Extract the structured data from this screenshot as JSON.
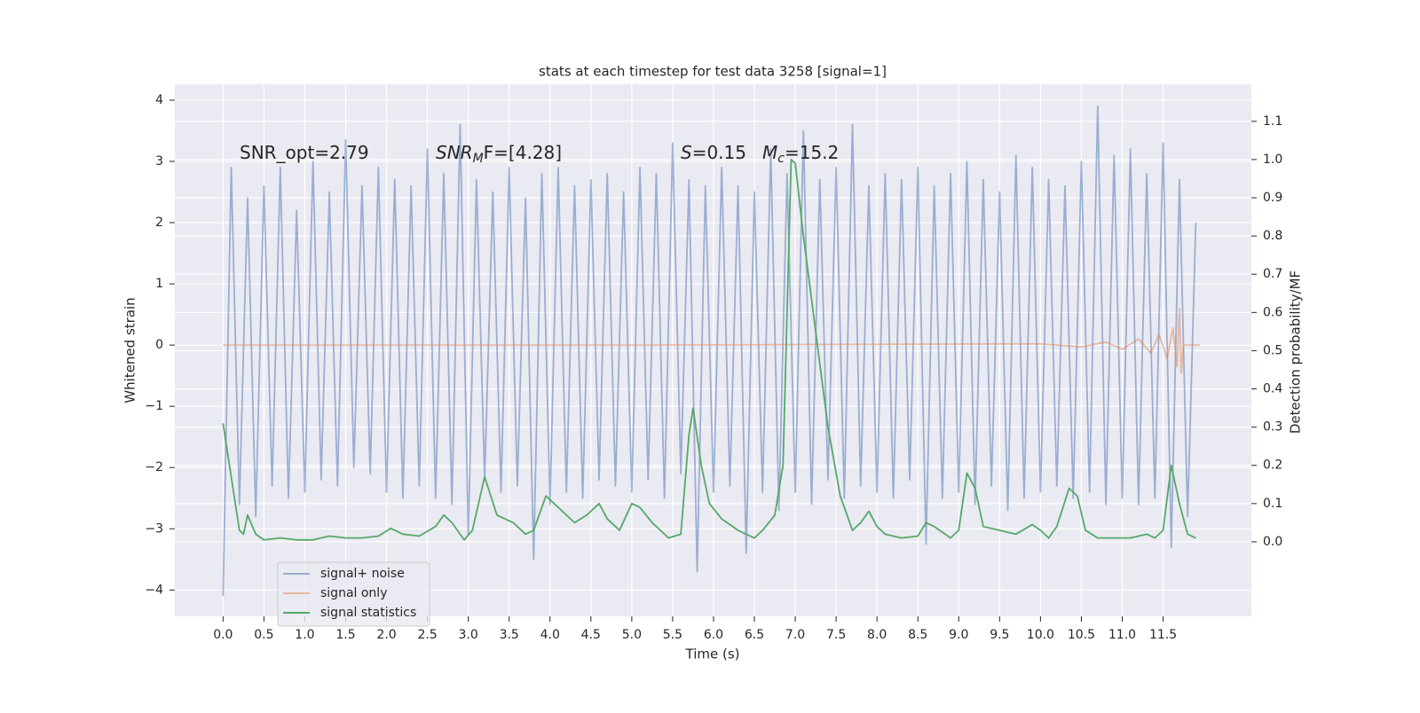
{
  "chart_data": {
    "type": "line",
    "title": "stats at each timestep for test data 3258 [signal=1]",
    "xlabel": "Time (s)",
    "ylabel": "Whitened strain",
    "y2label": "Detection probability/MF",
    "grid": true,
    "legend": "lower left",
    "annotations": [
      [
        "SNR_opt=2.79"
      ],
      [
        "SNR",
        "M",
        "F=[4.28]"
      ],
      [
        "S",
        "=0.15"
      ],
      [
        "M",
        "c",
        "=15.2"
      ]
    ],
    "xlim": [
      -0.59,
      12.58
    ],
    "ylim": [
      -4.43,
      4.26
    ],
    "y2lim": [
      -0.195,
      1.197
    ],
    "xticks": [
      {
        "value": 0,
        "label": "0.0"
      },
      {
        "value": 0.5,
        "label": "0.5"
      },
      {
        "value": 1,
        "label": "1.0"
      },
      {
        "value": 1.5,
        "label": "1.5"
      },
      {
        "value": 2,
        "label": "2.0"
      },
      {
        "value": 2.5,
        "label": "2.5"
      },
      {
        "value": 3,
        "label": "3.0"
      },
      {
        "value": 3.5,
        "label": "3.5"
      },
      {
        "value": 4,
        "label": "4.0"
      },
      {
        "value": 4.5,
        "label": "4.5"
      },
      {
        "value": 5,
        "label": "5.0"
      },
      {
        "value": 5.5,
        "label": "5.5"
      },
      {
        "value": 6,
        "label": "6.0"
      },
      {
        "value": 6.5,
        "label": "6.5"
      },
      {
        "value": 7,
        "label": "7.0"
      },
      {
        "value": 7.5,
        "label": "7.5"
      },
      {
        "value": 8,
        "label": "8.0"
      },
      {
        "value": 8.5,
        "label": "8.5"
      },
      {
        "value": 9,
        "label": "9.0"
      },
      {
        "value": 9.5,
        "label": "9.5"
      },
      {
        "value": 10,
        "label": "10.0"
      },
      {
        "value": 10.5,
        "label": "10.5"
      },
      {
        "value": 11,
        "label": "11.0"
      },
      {
        "value": 11.5,
        "label": "11.5"
      }
    ],
    "yticks": [
      {
        "value": -4,
        "label": "−4"
      },
      {
        "value": -3,
        "label": "−3"
      },
      {
        "value": -2,
        "label": "−2"
      },
      {
        "value": -1,
        "label": "−1"
      },
      0,
      1,
      2,
      3,
      4
    ],
    "y2ticks": [
      {
        "value": 0,
        "label": "0.0"
      },
      0.1,
      0.2,
      0.3,
      0.4,
      0.5,
      0.6,
      0.7,
      0.8,
      0.9,
      {
        "value": 1,
        "label": "1.0"
      },
      1.1
    ],
    "series": [
      {
        "name": "signal+ noise",
        "color": "#4c72b0",
        "opacity": 0.5,
        "x": [
          0,
          0.1,
          0.2,
          0.3,
          0.4,
          0.5,
          0.6,
          0.7,
          0.8,
          0.9,
          1,
          1.1,
          1.2,
          1.3,
          1.4,
          1.5,
          1.6,
          1.7,
          1.8,
          1.9,
          2,
          2.1,
          2.2,
          2.3,
          2.4,
          2.5,
          2.6,
          2.7,
          2.8,
          2.9,
          3,
          3.1,
          3.2,
          3.3,
          3.4,
          3.5,
          3.6,
          3.7,
          3.8,
          3.9,
          4,
          4.1,
          4.2,
          4.3,
          4.4,
          4.5,
          4.6,
          4.7,
          4.8,
          4.9,
          5,
          5.1,
          5.2,
          5.3,
          5.4,
          5.5,
          5.6,
          5.7,
          5.8,
          5.9,
          6,
          6.1,
          6.2,
          6.3,
          6.4,
          6.5,
          6.6,
          6.7,
          6.8,
          6.9,
          7,
          7.1,
          7.2,
          7.3,
          7.4,
          7.5,
          7.6,
          7.7,
          7.8,
          7.9,
          8,
          8.1,
          8.2,
          8.3,
          8.4,
          8.5,
          8.6,
          8.7,
          8.8,
          8.9,
          9,
          9.1,
          9.2,
          9.3,
          9.4,
          9.5,
          9.6,
          9.7,
          9.8,
          9.9,
          10,
          10.1,
          10.2,
          10.3,
          10.4,
          10.5,
          10.6,
          10.7,
          10.8,
          10.9,
          11,
          11.1,
          11.2,
          11.3,
          11.4,
          11.5,
          11.6,
          11.7,
          11.8,
          11.9
        ],
        "values": [
          -4.1,
          2.9,
          -2.6,
          2.4,
          -2.8,
          2.6,
          -2.3,
          2.9,
          -2.5,
          2.2,
          -2.4,
          3.0,
          -2.2,
          2.5,
          -2.3,
          3.35,
          -2.0,
          2.6,
          -2.1,
          2.9,
          -2.4,
          2.7,
          -2.5,
          2.6,
          -2.3,
          3.2,
          -2.5,
          2.8,
          -2.6,
          3.6,
          -3.1,
          2.7,
          -2.2,
          2.5,
          -2.4,
          2.9,
          -2.3,
          2.4,
          -3.5,
          2.8,
          -2.6,
          2.9,
          -2.4,
          2.6,
          -2.5,
          2.7,
          -2.2,
          2.8,
          -2.3,
          2.5,
          -2.4,
          2.9,
          -2.2,
          2.8,
          -2.5,
          3.3,
          -2.1,
          2.7,
          -3.7,
          2.6,
          -2.4,
          2.9,
          -2.3,
          2.6,
          -3.4,
          2.5,
          -2.4,
          3.2,
          -2.7,
          2.8,
          -2.4,
          3.5,
          -2.6,
          2.7,
          -2.2,
          2.9,
          -2.5,
          3.6,
          -2.3,
          2.6,
          -2.4,
          2.8,
          -2.5,
          2.7,
          -2.2,
          2.9,
          -3.25,
          2.6,
          -2.5,
          2.8,
          -2.4,
          3.0,
          -2.6,
          2.7,
          -2.3,
          2.5,
          -2.7,
          3.1,
          -2.5,
          2.9,
          -2.4,
          2.7,
          -2.3,
          2.6,
          -2.5,
          3.0,
          -2.4,
          3.9,
          -2.6,
          3.1,
          -2.5,
          3.2,
          -2.6,
          2.8,
          -2.5,
          3.3,
          -3.3,
          2.7,
          -2.8,
          2.0
        ]
      },
      {
        "name": "signal only",
        "color": "#dd8452",
        "opacity": 0.5,
        "x": [
          0,
          5,
          10,
          10.5,
          10.8,
          11.0,
          11.2,
          11.35,
          11.45,
          11.55,
          11.62,
          11.67,
          11.7,
          11.72,
          11.75,
          11.95
        ],
        "values": [
          0,
          0,
          0.02,
          -0.03,
          0.05,
          -0.07,
          0.1,
          -0.13,
          0.17,
          -0.22,
          0.28,
          -0.35,
          0.6,
          -0.45,
          0,
          0
        ]
      },
      {
        "name": "signal statistics",
        "color": "#55a868",
        "opacity": 1,
        "axis": "y2",
        "x": [
          0,
          0.1,
          0.2,
          0.25,
          0.3,
          0.4,
          0.5,
          0.7,
          0.9,
          1.1,
          1.3,
          1.5,
          1.7,
          1.9,
          2.05,
          2.2,
          2.4,
          2.6,
          2.7,
          2.8,
          2.95,
          3.05,
          3.2,
          3.35,
          3.55,
          3.7,
          3.8,
          3.95,
          4.1,
          4.3,
          4.45,
          4.6,
          4.7,
          4.85,
          5.0,
          5.1,
          5.25,
          5.45,
          5.6,
          5.7,
          5.75,
          5.85,
          5.95,
          6.1,
          6.3,
          6.5,
          6.6,
          6.75,
          6.85,
          6.95,
          7.0,
          7.1,
          7.25,
          7.4,
          7.55,
          7.7,
          7.8,
          7.9,
          8.0,
          8.1,
          8.3,
          8.5,
          8.6,
          8.7,
          8.9,
          9.0,
          9.1,
          9.2,
          9.3,
          9.5,
          9.7,
          9.9,
          10.0,
          10.1,
          10.2,
          10.35,
          10.45,
          10.55,
          10.7,
          10.9,
          11.1,
          11.3,
          11.4,
          11.5,
          11.6,
          11.7,
          11.8,
          11.9
        ],
        "values": [
          0.31,
          0.17,
          0.03,
          0.02,
          0.07,
          0.02,
          0.005,
          0.01,
          0.005,
          0.005,
          0.015,
          0.01,
          0.01,
          0.015,
          0.035,
          0.02,
          0.015,
          0.04,
          0.07,
          0.05,
          0.005,
          0.03,
          0.17,
          0.07,
          0.05,
          0.02,
          0.03,
          0.12,
          0.09,
          0.05,
          0.07,
          0.1,
          0.06,
          0.03,
          0.1,
          0.09,
          0.05,
          0.01,
          0.02,
          0.28,
          0.35,
          0.2,
          0.1,
          0.06,
          0.03,
          0.01,
          0.03,
          0.07,
          0.2,
          1.0,
          0.99,
          0.8,
          0.55,
          0.3,
          0.12,
          0.03,
          0.05,
          0.08,
          0.04,
          0.02,
          0.01,
          0.015,
          0.05,
          0.04,
          0.01,
          0.03,
          0.18,
          0.14,
          0.04,
          0.03,
          0.02,
          0.045,
          0.03,
          0.01,
          0.04,
          0.14,
          0.12,
          0.03,
          0.01,
          0.01,
          0.01,
          0.02,
          0.01,
          0.03,
          0.2,
          0.1,
          0.02,
          0.01
        ]
      }
    ]
  }
}
